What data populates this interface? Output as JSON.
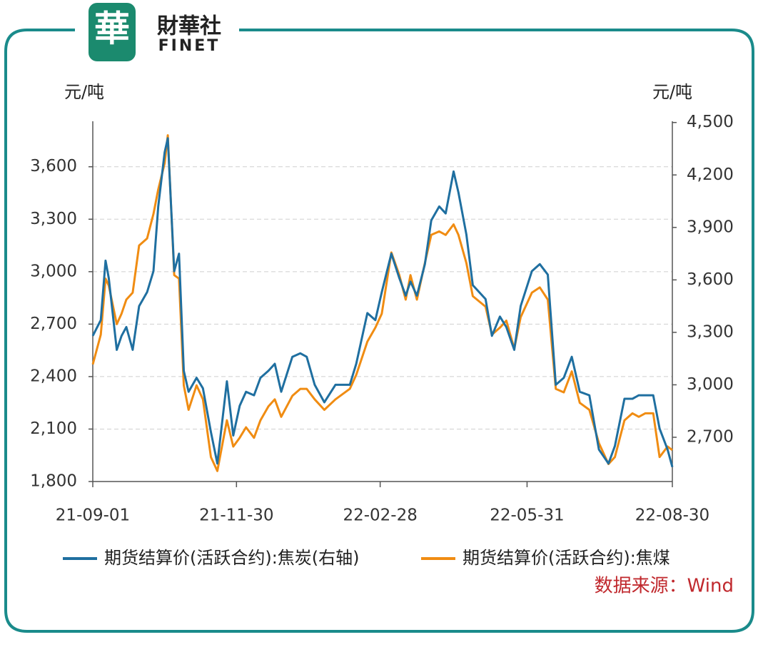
{
  "logo": {
    "mark": "華",
    "name": "財華社",
    "sub": "FINET"
  },
  "chart_data": {
    "type": "line",
    "y_label": "元/吨",
    "y2_label": "元/吨",
    "x": [
      "21-09-01",
      "21-09-06",
      "21-09-09",
      "21-09-11",
      "21-09-16",
      "21-09-19",
      "21-09-22",
      "21-09-26",
      "21-09-30",
      "21-10-05",
      "21-10-09",
      "21-10-12",
      "21-10-16",
      "21-10-18",
      "21-10-22",
      "21-10-25",
      "21-10-28",
      "21-10-31",
      "21-11-05",
      "21-11-09",
      "21-11-14",
      "21-11-18",
      "21-11-24",
      "21-11-28",
      "21-12-02",
      "21-12-06",
      "21-12-11",
      "21-12-15",
      "21-12-20",
      "21-12-24",
      "21-12-28",
      "22-01-04",
      "22-01-09",
      "22-01-13",
      "22-01-18",
      "22-01-24",
      "22-01-31",
      "22-02-09",
      "22-02-13",
      "22-02-20",
      "22-02-25",
      "22-03-01",
      "22-03-07",
      "22-03-12",
      "22-03-16",
      "22-03-19",
      "22-03-23",
      "22-03-28",
      "22-04-01",
      "22-04-06",
      "22-04-10",
      "22-04-15",
      "22-04-18",
      "22-04-23",
      "22-04-27",
      "22-05-05",
      "22-05-09",
      "22-05-14",
      "22-05-18",
      "22-05-23",
      "22-05-27",
      "22-06-03",
      "22-06-08",
      "22-06-13",
      "22-06-18",
      "22-06-23",
      "22-06-28",
      "22-07-03",
      "22-07-09",
      "22-07-15",
      "22-07-21",
      "22-07-25",
      "22-07-31",
      "22-08-05",
      "22-08-09",
      "22-08-13",
      "22-08-18",
      "22-08-22",
      "22-08-27",
      "22-08-30"
    ],
    "series": [
      {
        "name": "期货结算价(活跃合约):焦炭(右轴)",
        "color": "#1f6fa0",
        "axis": "y2",
        "values": [
          3280,
          3370,
          3710,
          3610,
          3200,
          3280,
          3330,
          3200,
          3450,
          3530,
          3650,
          4020,
          4330,
          4410,
          3650,
          3750,
          3080,
          2960,
          3040,
          2980,
          2730,
          2550,
          3020,
          2710,
          2880,
          2960,
          2940,
          3040,
          3080,
          3120,
          2960,
          3160,
          3180,
          3160,
          3000,
          2900,
          3000,
          3000,
          3120,
          3410,
          3370,
          3530,
          3750,
          3610,
          3510,
          3590,
          3510,
          3690,
          3940,
          4020,
          3980,
          4220,
          4100,
          3860,
          3570,
          3490,
          3280,
          3390,
          3330,
          3200,
          3450,
          3650,
          3690,
          3630,
          3000,
          3040,
          3160,
          2960,
          2940,
          2630,
          2550,
          2650,
          2920,
          2920,
          2940,
          2940,
          2940,
          2750,
          2630,
          2530
        ]
      },
      {
        "name": "期货结算价(活跃合约):焦煤",
        "color": "#f08c12",
        "values": [
          2470,
          2640,
          2960,
          2920,
          2700,
          2760,
          2840,
          2880,
          3150,
          3190,
          3330,
          3470,
          3620,
          3780,
          2980,
          2960,
          2350,
          2210,
          2350,
          2270,
          1940,
          1860,
          2150,
          2000,
          2050,
          2110,
          2050,
          2150,
          2230,
          2270,
          2170,
          2290,
          2330,
          2330,
          2270,
          2210,
          2270,
          2330,
          2410,
          2600,
          2680,
          2760,
          3110,
          2980,
          2840,
          2980,
          2840,
          3050,
          3210,
          3230,
          3210,
          3270,
          3210,
          3050,
          2860,
          2800,
          2640,
          2680,
          2720,
          2560,
          2740,
          2880,
          2910,
          2840,
          2330,
          2310,
          2430,
          2250,
          2210,
          2020,
          1900,
          1940,
          2150,
          2190,
          2170,
          2190,
          2190,
          1940,
          2000,
          1980
        ]
      }
    ],
    "xlim": [
      "21-09-01",
      "22-08-30"
    ],
    "xticks": [
      "21-09-01",
      "21-11-30",
      "22-02-28",
      "22-05-31",
      "22-08-30"
    ],
    "ylim": [
      1800,
      3860
    ],
    "yticks": [
      {
        "value": 1800,
        "label": "1,800"
      },
      {
        "value": 2100,
        "label": "2,100"
      },
      {
        "value": 2400,
        "label": "2,400"
      },
      {
        "value": 2700,
        "label": "2,700"
      },
      {
        "value": 3000,
        "label": "3,000"
      },
      {
        "value": 3300,
        "label": "3,300"
      },
      {
        "value": 3600,
        "label": "3,600"
      }
    ],
    "y2lim": [
      2447,
      4507
    ],
    "y2ticks": [
      {
        "value": 2700,
        "label": "2,700"
      },
      {
        "value": 3000,
        "label": "3,000"
      },
      {
        "value": 3300,
        "label": "3,300"
      },
      {
        "value": 3600,
        "label": "3,600"
      },
      {
        "value": 3900,
        "label": "3,900"
      },
      {
        "value": 4200,
        "label": "4,200"
      },
      {
        "value": 4500,
        "label": "4,500"
      }
    ],
    "grid": true
  },
  "source": "数据来源：Wind"
}
